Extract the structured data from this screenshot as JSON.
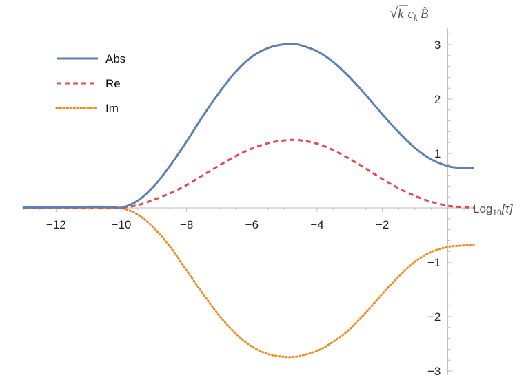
{
  "chart_data": {
    "type": "line",
    "title": "",
    "xlabel": "Log10[τ]",
    "xlabel_parts": {
      "base": "Log",
      "sub": "10",
      "arg": "[τ]"
    },
    "ylabel": "√k c_k B̃",
    "ylabel_parts": {
      "root": "√",
      "k": "k",
      "c": "c",
      "sub": "k",
      "B": "B̃"
    },
    "xlim": [
      -13,
      0.8
    ],
    "ylim": [
      -3,
      3.3
    ],
    "x_ticks": [
      -12,
      -10,
      -8,
      -6,
      -4,
      -2
    ],
    "x_tick_labels": [
      "−12",
      "−10",
      "−8",
      "−6",
      "−4",
      "−2"
    ],
    "y_ticks": [
      -3,
      -2,
      -1,
      1,
      2,
      3
    ],
    "y_tick_labels": [
      "−3",
      "−2",
      "−1",
      "1",
      "2",
      "3"
    ],
    "x": [
      -13,
      -12,
      -11,
      -10.5,
      -10.2,
      -10,
      -9.5,
      -9,
      -8.5,
      -8,
      -7.5,
      -7,
      -6.5,
      -6,
      -5.5,
      -5,
      -4.7,
      -4.5,
      -4,
      -3.5,
      -3,
      -2.5,
      -2,
      -1.5,
      -1,
      -0.5,
      0,
      0.3,
      0.6,
      0.8
    ],
    "series": [
      {
        "name": "Abs",
        "color": "#5b7fb5",
        "dash": "solid",
        "values": [
          0.01,
          0.01,
          0.02,
          0.02,
          0.01,
          0.0,
          0.13,
          0.4,
          0.78,
          1.22,
          1.69,
          2.12,
          2.5,
          2.78,
          2.94,
          3.01,
          3.01,
          2.99,
          2.88,
          2.68,
          2.4,
          2.07,
          1.72,
          1.39,
          1.1,
          0.89,
          0.77,
          0.74,
          0.73,
          0.73
        ]
      },
      {
        "name": "Re",
        "color": "#e8474c",
        "dash": "dashed",
        "values": [
          0.0,
          0.0,
          0.0,
          0.0,
          0.0,
          0.0,
          0.05,
          0.15,
          0.27,
          0.42,
          0.6,
          0.78,
          0.95,
          1.09,
          1.19,
          1.24,
          1.25,
          1.24,
          1.18,
          1.06,
          0.9,
          0.72,
          0.53,
          0.36,
          0.22,
          0.11,
          0.04,
          0.02,
          0.01,
          0.0
        ]
      },
      {
        "name": "Im",
        "color": "#ef8c1e",
        "dash": "dotted",
        "values": [
          0.0,
          0.0,
          0.0,
          0.0,
          0.0,
          0.0,
          -0.12,
          -0.37,
          -0.72,
          -1.15,
          -1.58,
          -1.98,
          -2.31,
          -2.55,
          -2.69,
          -2.74,
          -2.74,
          -2.72,
          -2.63,
          -2.46,
          -2.23,
          -1.92,
          -1.58,
          -1.26,
          -0.99,
          -0.81,
          -0.72,
          -0.7,
          -0.69,
          -0.69
        ]
      }
    ],
    "legend": {
      "placement": "top-left",
      "entries": [
        "Abs",
        "Re",
        "Im"
      ]
    },
    "grid": false
  }
}
